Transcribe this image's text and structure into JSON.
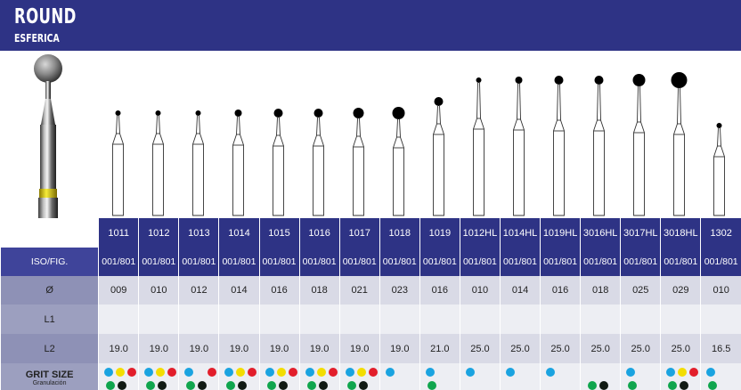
{
  "header": {
    "title": "ROUND",
    "subtitle": "ESFERICA"
  },
  "colors": {
    "navy": "#2e3385",
    "blue": "#1aa3e0",
    "yellow": "#f3dd00",
    "red": "#e21e2b",
    "green": "#10a54e",
    "black": "#111a14",
    "lightgreen": "#63c35e"
  },
  "row_labels": {
    "iso": "ISO/FIG.",
    "diameter": "Ø",
    "l1": "L1",
    "l2": "L2",
    "grit": "GRIT SIZE",
    "grit_sub": "Granulación"
  },
  "products": [
    {
      "code": "1011",
      "iso": "001/801",
      "diameter": "009",
      "l2": "19.0",
      "grit_top": [
        "blue",
        "yellow",
        "red"
      ],
      "grit_bottom": [
        "green",
        "black"
      ]
    },
    {
      "code": "1012",
      "iso": "001/801",
      "diameter": "010",
      "l2": "19.0",
      "grit_top": [
        "blue",
        "yellow",
        "red"
      ],
      "grit_bottom": [
        "green",
        "black"
      ]
    },
    {
      "code": "1013",
      "iso": "001/801",
      "diameter": "012",
      "l2": "19.0",
      "grit_top": [
        "blue",
        "",
        "red"
      ],
      "grit_bottom": [
        "green",
        "black"
      ]
    },
    {
      "code": "1014",
      "iso": "001/801",
      "diameter": "014",
      "l2": "19.0",
      "grit_top": [
        "blue",
        "yellow",
        "red"
      ],
      "grit_bottom": [
        "green",
        "black"
      ]
    },
    {
      "code": "1015",
      "iso": "001/801",
      "diameter": "016",
      "l2": "19.0",
      "grit_top": [
        "blue",
        "yellow",
        "red"
      ],
      "grit_bottom": [
        "green",
        "black"
      ]
    },
    {
      "code": "1016",
      "iso": "001/801",
      "diameter": "018",
      "l2": "19.0",
      "grit_top": [
        "blue",
        "yellow",
        "red"
      ],
      "grit_bottom": [
        "green",
        "black"
      ]
    },
    {
      "code": "1017",
      "iso": "001/801",
      "diameter": "021",
      "l2": "19.0",
      "grit_top": [
        "blue",
        "yellow",
        "red"
      ],
      "grit_bottom": [
        "green",
        "black"
      ]
    },
    {
      "code": "1018",
      "iso": "001/801",
      "diameter": "023",
      "l2": "19.0",
      "grit_top": [
        "blue"
      ],
      "grit_bottom": []
    },
    {
      "code": "1019",
      "iso": "001/801",
      "diameter": "016",
      "l2": "21.0",
      "grit_top": [
        "blue"
      ],
      "grit_bottom": [
        "green"
      ]
    },
    {
      "code": "1012HL",
      "iso": "001/801",
      "diameter": "010",
      "l2": "25.0",
      "grit_top": [
        "blue"
      ],
      "grit_bottom": []
    },
    {
      "code": "1014HL",
      "iso": "001/801",
      "diameter": "014",
      "l2": "25.0",
      "grit_top": [
        "blue"
      ],
      "grit_bottom": []
    },
    {
      "code": "1019HL",
      "iso": "001/801",
      "diameter": "016",
      "l2": "25.0",
      "grit_top": [
        "blue"
      ],
      "grit_bottom": []
    },
    {
      "code": "3016HL",
      "iso": "001/801",
      "diameter": "018",
      "l2": "25.0",
      "grit_top": [],
      "grit_bottom": [
        "green",
        "black"
      ]
    },
    {
      "code": "3017HL",
      "iso": "001/801",
      "diameter": "025",
      "l2": "25.0",
      "grit_top": [
        "blue"
      ],
      "grit_bottom": [
        "green"
      ]
    },
    {
      "code": "3018HL",
      "iso": "001/801",
      "diameter": "029",
      "l2": "25.0",
      "grit_top": [
        "blue",
        "yellow",
        "red"
      ],
      "grit_bottom": [
        "green",
        "black"
      ]
    },
    {
      "code": "1302",
      "iso": "001/801",
      "diameter": "010",
      "l2": "16.5",
      "grit_top": [
        "blue"
      ],
      "grit_bottom": [
        "green"
      ]
    }
  ]
}
